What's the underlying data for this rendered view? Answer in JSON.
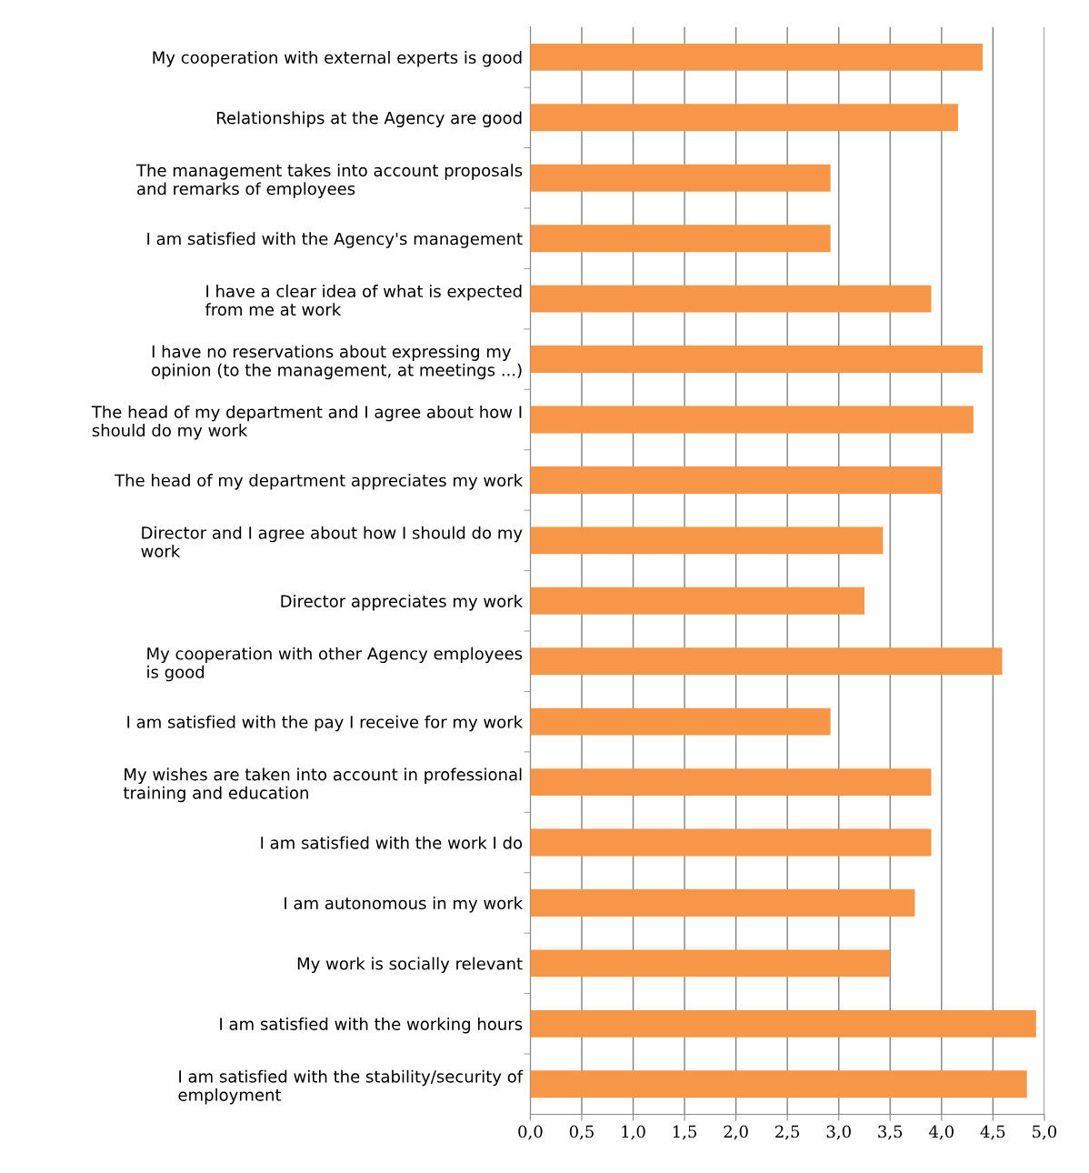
{
  "chart_data": {
    "type": "bar",
    "orientation": "horizontal",
    "categories": [
      "My cooperation with external experts is good",
      "Relationships at the Agency are good",
      "The management takes into account proposals\nand remarks of employees",
      "I am satisfied with the Agency's management",
      "I have a clear idea of what is expected\nfrom me at work",
      "I have no reservations about expressing my\nopinion (to the management, at meetings ...)",
      "The head of my department and I agree about how I\nshould do my work",
      "The head of my department appreciates my work",
      "Director and I agree about how I should do my\nwork",
      "Director appreciates my work",
      "My cooperation with other Agency employees\nis good",
      "I am satisfied with the pay I receive for my work",
      "My wishes are taken into account in professional\ntraining and education",
      "I am satisfied with the work I do",
      "I am autonomous in my work",
      "My work is socially relevant",
      "I am satisfied with the working hours",
      "I am satisfied with the stability/security of\nemployment"
    ],
    "values": [
      4.4,
      4.16,
      2.92,
      2.92,
      3.9,
      4.4,
      4.31,
      4.0,
      3.43,
      3.25,
      4.59,
      2.92,
      3.9,
      3.9,
      3.74,
      3.5,
      4.92,
      4.83
    ],
    "color": "#f79646",
    "xlim": [
      0,
      5
    ],
    "xticks": [
      {
        "value": 0,
        "label": "0,0"
      },
      {
        "value": 0.5,
        "label": "0,5"
      },
      {
        "value": 1,
        "label": "1,0"
      },
      {
        "value": 1.5,
        "label": "1,5"
      },
      {
        "value": 2,
        "label": "2,0"
      },
      {
        "value": 2.5,
        "label": "2,5"
      },
      {
        "value": 3,
        "label": "3,0"
      },
      {
        "value": 3.5,
        "label": "3,5"
      },
      {
        "value": 4,
        "label": "4,0"
      },
      {
        "value": 4.5,
        "label": "4,5"
      },
      {
        "value": 5,
        "label": "5,0"
      }
    ],
    "grid": "x"
  }
}
